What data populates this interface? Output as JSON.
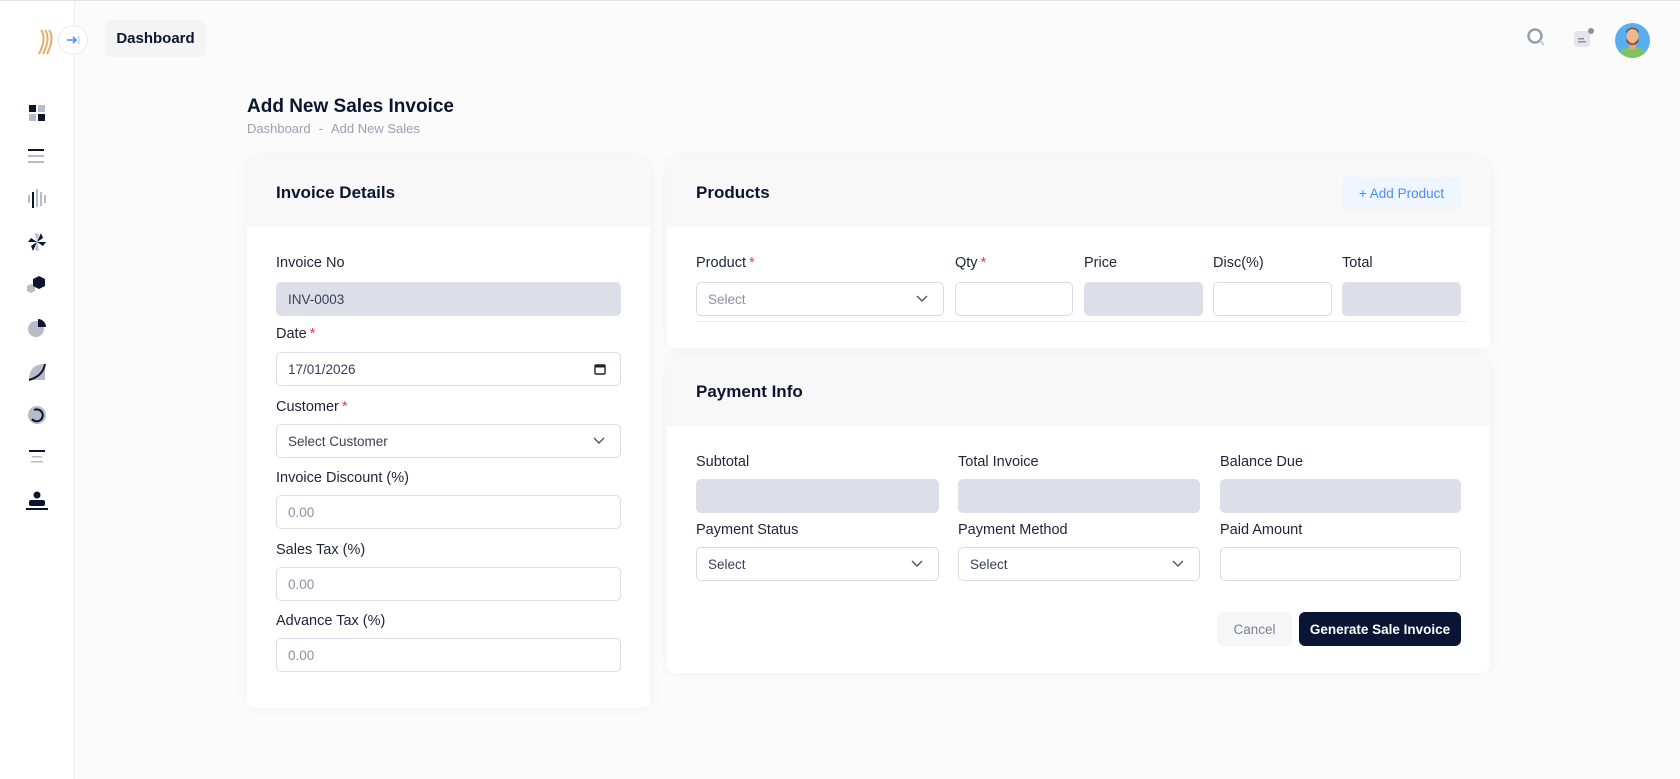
{
  "header": {
    "breadcrumb_pill": "Dashboard",
    "search_icon": "search-icon",
    "notification_icon": "notification-icon",
    "avatar": "user-avatar"
  },
  "sidebar": {
    "icons": [
      "dashboard-icon",
      "list-icon",
      "bars-icon",
      "pinwheel-icon",
      "hexagon-icon",
      "pie-chart-icon",
      "curve-icon",
      "spinner-icon",
      "align-center-icon",
      "user-desk-icon"
    ]
  },
  "page": {
    "title": "Add New Sales Invoice",
    "breadcrumb": [
      "Dashboard",
      "-",
      "Add New Sales"
    ]
  },
  "invoice": {
    "title": "Invoice Details",
    "invoice_no_label": "Invoice No",
    "invoice_no": "INV-0003",
    "date_label": "Date",
    "date": "17/01/2026",
    "customer_label": "Customer",
    "customer_placeholder": "Select Customer",
    "discount_label": "Invoice Discount (%)",
    "discount_placeholder": "0.00",
    "sales_tax_label": "Sales Tax (%)",
    "sales_tax_placeholder": "0.00",
    "advance_tax_label": "Advance Tax (%)",
    "advance_tax_placeholder": "0.00"
  },
  "products": {
    "title": "Products",
    "add_button": "+ Add Product",
    "columns": {
      "product": "Product",
      "qty": "Qty",
      "price": "Price",
      "disc": "Disc(%)",
      "total": "Total"
    },
    "product_placeholder": "Select"
  },
  "payment": {
    "title": "Payment Info",
    "subtotal": "Subtotal",
    "total_invoice": "Total Invoice",
    "balance_due": "Balance Due",
    "status_label": "Payment Status",
    "status_placeholder": "Select",
    "method_label": "Payment Method",
    "method_placeholder": "Select",
    "paid_label": "Paid Amount",
    "cancel": "Cancel",
    "generate": "Generate Sale Invoice"
  },
  "colors": {
    "primary": "#0a1536",
    "accent": "#4a8cf7",
    "required": "#e53956",
    "readonly": "#dcdfe8"
  }
}
